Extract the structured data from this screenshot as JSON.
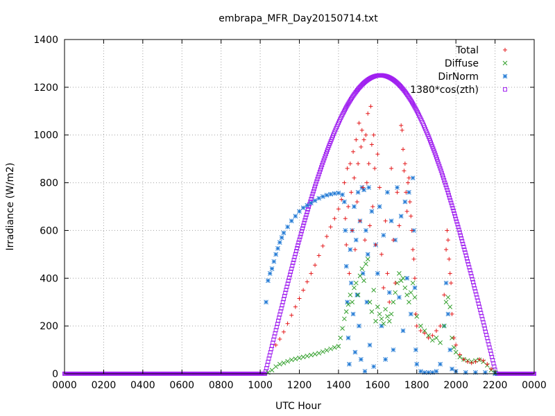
{
  "chart_data": {
    "type": "scatter",
    "title": "embrapa_MFR_Day20150714.txt",
    "xlabel": "UTC Hour",
    "ylabel": "Irradiance (W/m2)",
    "xlim": [
      0,
      24
    ],
    "ylim": [
      0,
      1400
    ],
    "grid": true,
    "legend_position": "top-right",
    "x_ticks": [
      {
        "value": 0,
        "label": "0000"
      },
      {
        "value": 2,
        "label": "0200"
      },
      {
        "value": 4,
        "label": "0400"
      },
      {
        "value": 6,
        "label": "0600"
      },
      {
        "value": 8,
        "label": "0800"
      },
      {
        "value": 10,
        "label": "1000"
      },
      {
        "value": 12,
        "label": "1200"
      },
      {
        "value": 14,
        "label": "1400"
      },
      {
        "value": 16,
        "label": "1600"
      },
      {
        "value": 18,
        "label": "1800"
      },
      {
        "value": 20,
        "label": "2000"
      },
      {
        "value": 22,
        "label": "2200"
      },
      {
        "value": 24,
        "label": "0000"
      }
    ],
    "y_ticks": [
      0,
      200,
      400,
      600,
      800,
      1000,
      1200,
      1400
    ],
    "series": [
      {
        "name": "Total",
        "marker": "plus",
        "color": "#e41a1c",
        "points": [
          [
            10.8,
            120
          ],
          [
            11.0,
            145
          ],
          [
            11.2,
            175
          ],
          [
            11.4,
            210
          ],
          [
            11.6,
            245
          ],
          [
            11.8,
            280
          ],
          [
            12.0,
            315
          ],
          [
            12.2,
            350
          ],
          [
            12.4,
            385
          ],
          [
            12.6,
            420
          ],
          [
            12.8,
            455
          ],
          [
            13.0,
            495
          ],
          [
            13.2,
            535
          ],
          [
            13.4,
            575
          ],
          [
            13.6,
            615
          ],
          [
            13.8,
            650
          ],
          [
            14.0,
            690
          ],
          [
            14.15,
            730
          ],
          [
            14.3,
            800
          ],
          [
            14.35,
            650
          ],
          [
            14.4,
            540
          ],
          [
            14.45,
            860
          ],
          [
            14.5,
            700
          ],
          [
            14.55,
            420
          ],
          [
            14.6,
            880
          ],
          [
            14.65,
            760
          ],
          [
            14.7,
            600
          ],
          [
            14.75,
            930
          ],
          [
            14.8,
            820
          ],
          [
            14.85,
            520
          ],
          [
            14.9,
            980
          ],
          [
            14.95,
            720
          ],
          [
            15.0,
            880
          ],
          [
            15.05,
            1050
          ],
          [
            15.1,
            640
          ],
          [
            15.15,
            950
          ],
          [
            15.2,
            1020
          ],
          [
            15.25,
            780
          ],
          [
            15.3,
            980
          ],
          [
            15.35,
            560
          ],
          [
            15.4,
            1000
          ],
          [
            15.45,
            800
          ],
          [
            15.5,
            1090
          ],
          [
            15.55,
            880
          ],
          [
            15.6,
            620
          ],
          [
            15.65,
            1120
          ],
          [
            15.7,
            960
          ],
          [
            15.75,
            700
          ],
          [
            15.8,
            1000
          ],
          [
            15.85,
            860
          ],
          [
            15.9,
            540
          ],
          [
            16.0,
            920
          ],
          [
            16.1,
            780
          ],
          [
            16.2,
            500
          ],
          [
            16.3,
            360
          ],
          [
            16.4,
            640
          ],
          [
            16.5,
            420
          ],
          [
            16.6,
            300
          ],
          [
            16.7,
            860
          ],
          [
            16.8,
            560
          ],
          [
            16.9,
            380
          ],
          [
            17.0,
            760
          ],
          [
            17.1,
            620
          ],
          [
            17.2,
            1040
          ],
          [
            17.25,
            1020
          ],
          [
            17.3,
            940
          ],
          [
            17.35,
            850
          ],
          [
            17.4,
            880
          ],
          [
            17.45,
            760
          ],
          [
            17.5,
            680
          ],
          [
            17.55,
            800
          ],
          [
            17.6,
            820
          ],
          [
            17.65,
            720
          ],
          [
            17.7,
            660
          ],
          [
            17.75,
            600
          ],
          [
            17.8,
            520
          ],
          [
            17.85,
            480
          ],
          [
            17.9,
            400
          ],
          [
            17.95,
            250
          ],
          [
            18.0,
            200
          ],
          [
            18.2,
            180
          ],
          [
            18.4,
            170
          ],
          [
            18.6,
            150
          ],
          [
            18.8,
            160
          ],
          [
            19.0,
            180
          ],
          [
            19.2,
            200
          ],
          [
            19.4,
            330
          ],
          [
            19.5,
            520
          ],
          [
            19.55,
            600
          ],
          [
            19.6,
            560
          ],
          [
            19.65,
            480
          ],
          [
            19.7,
            420
          ],
          [
            19.75,
            380
          ],
          [
            19.8,
            250
          ],
          [
            19.9,
            150
          ],
          [
            20.0,
            120
          ],
          [
            20.2,
            80
          ],
          [
            20.4,
            60
          ],
          [
            20.6,
            50
          ],
          [
            20.8,
            45
          ],
          [
            21.0,
            50
          ],
          [
            21.2,
            60
          ],
          [
            21.4,
            55
          ],
          [
            21.6,
            40
          ],
          [
            21.8,
            20
          ]
        ]
      },
      {
        "name": "Diffuse",
        "marker": "cross",
        "color": "#33a02c",
        "points": [
          [
            10.4,
            5
          ],
          [
            10.6,
            15
          ],
          [
            10.8,
            30
          ],
          [
            11.0,
            40
          ],
          [
            11.2,
            45
          ],
          [
            11.4,
            52
          ],
          [
            11.6,
            58
          ],
          [
            11.8,
            62
          ],
          [
            12.0,
            66
          ],
          [
            12.2,
            70
          ],
          [
            12.4,
            74
          ],
          [
            12.6,
            78
          ],
          [
            12.8,
            82
          ],
          [
            13.0,
            86
          ],
          [
            13.2,
            92
          ],
          [
            13.4,
            98
          ],
          [
            13.6,
            104
          ],
          [
            13.8,
            110
          ],
          [
            14.0,
            115
          ],
          [
            14.1,
            150
          ],
          [
            14.2,
            190
          ],
          [
            14.3,
            230
          ],
          [
            14.4,
            260
          ],
          [
            14.5,
            290
          ],
          [
            14.6,
            330
          ],
          [
            14.7,
            300
          ],
          [
            14.8,
            360
          ],
          [
            14.9,
            380
          ],
          [
            15.0,
            330
          ],
          [
            15.1,
            410
          ],
          [
            15.2,
            440
          ],
          [
            15.3,
            390
          ],
          [
            15.4,
            460
          ],
          [
            15.5,
            480
          ],
          [
            15.6,
            300
          ],
          [
            15.7,
            260
          ],
          [
            15.8,
            350
          ],
          [
            15.9,
            220
          ],
          [
            16.0,
            280
          ],
          [
            16.1,
            250
          ],
          [
            16.2,
            230
          ],
          [
            16.3,
            210
          ],
          [
            16.4,
            270
          ],
          [
            16.5,
            240
          ],
          [
            16.6,
            220
          ],
          [
            16.7,
            250
          ],
          [
            16.8,
            300
          ],
          [
            16.9,
            340
          ],
          [
            17.0,
            380
          ],
          [
            17.1,
            420
          ],
          [
            17.2,
            390
          ],
          [
            17.3,
            400
          ],
          [
            17.4,
            360
          ],
          [
            17.5,
            330
          ],
          [
            17.6,
            300
          ],
          [
            17.7,
            340
          ],
          [
            17.8,
            380
          ],
          [
            17.9,
            320
          ],
          [
            18.0,
            240
          ],
          [
            18.2,
            200
          ],
          [
            18.4,
            180
          ],
          [
            18.6,
            160
          ],
          [
            18.8,
            140
          ],
          [
            19.0,
            150
          ],
          [
            19.2,
            130
          ],
          [
            19.4,
            200
          ],
          [
            19.5,
            300
          ],
          [
            19.6,
            320
          ],
          [
            19.7,
            280
          ],
          [
            19.8,
            150
          ],
          [
            19.9,
            110
          ],
          [
            20.0,
            90
          ],
          [
            20.2,
            70
          ],
          [
            20.4,
            60
          ],
          [
            20.6,
            55
          ],
          [
            20.8,
            50
          ],
          [
            21.0,
            55
          ],
          [
            21.2,
            58
          ],
          [
            21.4,
            50
          ],
          [
            21.6,
            35
          ],
          [
            21.8,
            15
          ],
          [
            22.0,
            5
          ]
        ]
      },
      {
        "name": "DirNorm",
        "marker": "star",
        "color": "#1f78d4",
        "points": [
          [
            10.3,
            300
          ],
          [
            10.4,
            390
          ],
          [
            10.5,
            420
          ],
          [
            10.6,
            440
          ],
          [
            10.7,
            470
          ],
          [
            10.8,
            500
          ],
          [
            10.9,
            525
          ],
          [
            11.0,
            550
          ],
          [
            11.1,
            570
          ],
          [
            11.2,
            590
          ],
          [
            11.4,
            615
          ],
          [
            11.6,
            640
          ],
          [
            11.8,
            660
          ],
          [
            12.0,
            680
          ],
          [
            12.2,
            695
          ],
          [
            12.4,
            705
          ],
          [
            12.6,
            715
          ],
          [
            12.8,
            725
          ],
          [
            13.0,
            735
          ],
          [
            13.2,
            742
          ],
          [
            13.4,
            748
          ],
          [
            13.6,
            752
          ],
          [
            13.8,
            755
          ],
          [
            14.0,
            757
          ],
          [
            14.2,
            750
          ],
          [
            14.3,
            720
          ],
          [
            14.35,
            600
          ],
          [
            14.4,
            450
          ],
          [
            14.45,
            300
          ],
          [
            14.5,
            150
          ],
          [
            14.55,
            40
          ],
          [
            14.6,
            520
          ],
          [
            14.65,
            380
          ],
          [
            14.7,
            600
          ],
          [
            14.75,
            250
          ],
          [
            14.8,
            700
          ],
          [
            14.85,
            90
          ],
          [
            14.9,
            560
          ],
          [
            14.95,
            330
          ],
          [
            15.0,
            760
          ],
          [
            15.05,
            200
          ],
          [
            15.1,
            640
          ],
          [
            15.15,
            60
          ],
          [
            15.2,
            780
          ],
          [
            15.25,
            420
          ],
          [
            15.3,
            770
          ],
          [
            15.35,
            10
          ],
          [
            15.4,
            600
          ],
          [
            15.45,
            300
          ],
          [
            15.5,
            500
          ],
          [
            15.55,
            780
          ],
          [
            15.6,
            120
          ],
          [
            15.7,
            680
          ],
          [
            15.8,
            30
          ],
          [
            15.9,
            540
          ],
          [
            16.0,
            420
          ],
          [
            16.1,
            700
          ],
          [
            16.2,
            200
          ],
          [
            16.3,
            580
          ],
          [
            16.4,
            60
          ],
          [
            16.5,
            760
          ],
          [
            16.6,
            340
          ],
          [
            16.7,
            640
          ],
          [
            16.8,
            100
          ],
          [
            16.9,
            560
          ],
          [
            17.0,
            780
          ],
          [
            17.1,
            320
          ],
          [
            17.2,
            660
          ],
          [
            17.3,
            180
          ],
          [
            17.4,
            720
          ],
          [
            17.5,
            400
          ],
          [
            17.6,
            760
          ],
          [
            17.7,
            250
          ],
          [
            17.8,
            820
          ],
          [
            17.85,
            600
          ],
          [
            17.9,
            360
          ],
          [
            17.95,
            100
          ],
          [
            18.0,
            40
          ],
          [
            18.2,
            10
          ],
          [
            18.4,
            5
          ],
          [
            18.6,
            5
          ],
          [
            18.8,
            5
          ],
          [
            19.0,
            10
          ],
          [
            19.2,
            40
          ],
          [
            19.4,
            200
          ],
          [
            19.5,
            380
          ],
          [
            19.6,
            250
          ],
          [
            19.7,
            100
          ],
          [
            19.8,
            20
          ],
          [
            20.0,
            10
          ],
          [
            20.5,
            5
          ],
          [
            21.0,
            5
          ],
          [
            21.5,
            5
          ],
          [
            22.0,
            0
          ]
        ]
      },
      {
        "name": "1380*cos(zth)",
        "marker": "square",
        "color": "#a020f0",
        "curve": {
          "peak": 1250,
          "x_rise": 10.25,
          "x_set": 22.05,
          "x_peak": 16.15,
          "step": 0.04
        }
      }
    ]
  }
}
